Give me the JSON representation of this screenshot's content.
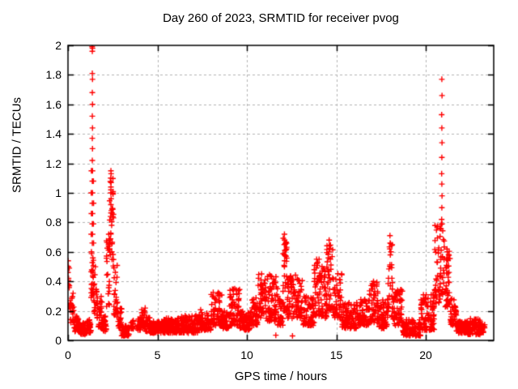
{
  "chart_data": {
    "type": "scatter",
    "title": "Day 260 of 2023, SRMTID for receiver pvog",
    "xlabel": "GPS time / hours",
    "ylabel": "SRMTID / TECUs",
    "xlim": [
      0,
      23.8
    ],
    "ylim": [
      0,
      2
    ],
    "xticks": [
      0,
      5,
      10,
      15,
      20
    ],
    "xtick_labels": [
      "0",
      "5",
      "10",
      "15",
      "20"
    ],
    "yticks": [
      0,
      0.2,
      0.4,
      0.6,
      0.8,
      1,
      1.2,
      1.4,
      1.6,
      1.8,
      2
    ],
    "ytick_labels": [
      "0",
      "0.2",
      "0.4",
      "0.6",
      "0.8",
      "1",
      "1.2",
      "1.4",
      "1.6",
      "1.8",
      "2"
    ],
    "grid": {
      "show": true,
      "color": "#b4b4b4",
      "dash": [
        3,
        3
      ]
    },
    "axis_color": "#000000",
    "background": "#ffffff",
    "legend": "none",
    "marker": {
      "shape": "plus",
      "color": "#ff0000",
      "size": 7
    },
    "random_seed": 260,
    "series": [
      {
        "name": "SRMTID",
        "band_segments": [
          [
            0.0,
            0.1,
            0.22,
            0.5,
            10
          ],
          [
            0.1,
            0.35,
            0.12,
            0.32,
            24
          ],
          [
            0.35,
            0.6,
            0.06,
            0.18,
            26
          ],
          [
            0.6,
            1.05,
            0.04,
            0.12,
            48
          ],
          [
            1.05,
            1.3,
            0.05,
            0.14,
            26
          ],
          [
            1.28,
            1.44,
            0.25,
            0.62,
            22
          ],
          [
            1.44,
            1.62,
            0.18,
            0.5,
            20
          ],
          [
            1.62,
            1.92,
            0.08,
            0.32,
            32
          ],
          [
            1.92,
            2.15,
            0.06,
            0.18,
            24
          ],
          [
            2.15,
            2.32,
            0.2,
            0.68,
            20
          ],
          [
            2.32,
            2.55,
            0.5,
            1.13,
            30
          ],
          [
            2.55,
            2.78,
            0.15,
            0.55,
            24
          ],
          [
            2.78,
            3.0,
            0.08,
            0.22,
            24
          ],
          [
            3.0,
            3.42,
            0.03,
            0.1,
            44
          ],
          [
            3.48,
            3.66,
            0.07,
            0.14,
            16
          ],
          [
            3.82,
            4.05,
            0.07,
            0.16,
            24
          ],
          [
            4.05,
            4.32,
            0.08,
            0.22,
            28
          ],
          [
            4.32,
            4.6,
            0.06,
            0.16,
            28
          ],
          [
            4.6,
            5.35,
            0.05,
            0.13,
            78
          ],
          [
            5.35,
            6.35,
            0.05,
            0.15,
            104
          ],
          [
            6.35,
            7.3,
            0.05,
            0.17,
            100
          ],
          [
            7.3,
            8.0,
            0.07,
            0.21,
            74
          ],
          [
            8.0,
            8.62,
            0.1,
            0.33,
            64
          ],
          [
            8.62,
            9.02,
            0.08,
            0.2,
            42
          ],
          [
            9.02,
            9.62,
            0.1,
            0.36,
            62
          ],
          [
            9.62,
            10.25,
            0.07,
            0.2,
            66
          ],
          [
            10.25,
            10.62,
            0.1,
            0.3,
            38
          ],
          [
            10.62,
            11.05,
            0.15,
            0.47,
            44
          ],
          [
            11.05,
            11.72,
            0.13,
            0.45,
            70
          ],
          [
            11.72,
            12.02,
            0.1,
            0.3,
            30
          ],
          [
            12.02,
            12.25,
            0.2,
            0.7,
            30
          ],
          [
            12.25,
            12.72,
            0.15,
            0.46,
            48
          ],
          [
            12.72,
            13.12,
            0.15,
            0.42,
            42
          ],
          [
            13.12,
            13.76,
            0.1,
            0.3,
            66
          ],
          [
            13.76,
            14.06,
            0.15,
            0.55,
            34
          ],
          [
            14.06,
            14.46,
            0.15,
            0.5,
            42
          ],
          [
            14.46,
            14.82,
            0.2,
            0.66,
            40
          ],
          [
            14.82,
            15.32,
            0.15,
            0.46,
            52
          ],
          [
            15.32,
            16.22,
            0.08,
            0.26,
            94
          ],
          [
            16.22,
            16.82,
            0.1,
            0.28,
            62
          ],
          [
            16.82,
            17.32,
            0.12,
            0.4,
            52
          ],
          [
            17.32,
            17.86,
            0.08,
            0.28,
            56
          ],
          [
            17.86,
            18.16,
            0.15,
            0.68,
            34
          ],
          [
            18.16,
            18.72,
            0.1,
            0.35,
            58
          ],
          [
            18.72,
            19.72,
            0.03,
            0.14,
            104
          ],
          [
            19.72,
            20.48,
            0.07,
            0.32,
            78
          ],
          [
            20.48,
            20.82,
            0.25,
            0.78,
            40
          ],
          [
            20.82,
            21.06,
            0.3,
            0.8,
            26
          ],
          [
            21.06,
            21.36,
            0.22,
            0.62,
            36
          ],
          [
            21.36,
            21.72,
            0.1,
            0.3,
            38
          ],
          [
            21.72,
            22.35,
            0.05,
            0.13,
            66
          ],
          [
            22.35,
            23.05,
            0.04,
            0.15,
            72
          ],
          [
            23.05,
            23.3,
            0.05,
            0.12,
            26
          ]
        ],
        "spike_points": [
          [
            0.01,
            0.54
          ],
          [
            0.02,
            0.5
          ],
          [
            0.0,
            0.46
          ],
          [
            0.03,
            0.42
          ],
          [
            0.01,
            0.38
          ],
          [
            1.35,
            1.99
          ],
          [
            1.37,
            1.98
          ],
          [
            1.36,
            1.96
          ],
          [
            1.36,
            1.81
          ],
          [
            1.37,
            1.77
          ],
          [
            1.36,
            1.68
          ],
          [
            1.37,
            1.6
          ],
          [
            1.36,
            1.52
          ],
          [
            1.37,
            1.44
          ],
          [
            1.36,
            1.37
          ],
          [
            1.37,
            1.3
          ],
          [
            1.36,
            1.22
          ],
          [
            1.37,
            1.15
          ],
          [
            1.36,
            1.08
          ],
          [
            1.37,
            1.0
          ],
          [
            1.36,
            0.93
          ],
          [
            1.37,
            0.86
          ],
          [
            1.36,
            0.79
          ],
          [
            1.37,
            0.72
          ],
          [
            1.36,
            0.66
          ],
          [
            1.31,
            1.15
          ],
          [
            1.3,
            1.0
          ],
          [
            1.31,
            0.86
          ],
          [
            1.3,
            0.72
          ],
          [
            1.31,
            0.6
          ],
          [
            1.42,
            1.08
          ],
          [
            1.43,
            0.93
          ],
          [
            1.42,
            0.79
          ],
          [
            1.43,
            0.66
          ],
          [
            2.4,
            1.15
          ],
          [
            2.41,
            1.13
          ],
          [
            2.39,
            1.1
          ],
          [
            2.41,
            1.07
          ],
          [
            2.4,
            1.04
          ],
          [
            2.39,
            1.0
          ],
          [
            2.41,
            0.96
          ],
          [
            2.4,
            0.92
          ],
          [
            2.42,
            0.88
          ],
          [
            2.38,
            0.84
          ],
          [
            2.44,
            0.78
          ],
          [
            2.28,
            0.72
          ],
          [
            2.27,
            0.65
          ],
          [
            2.45,
            0.6
          ],
          [
            2.46,
            0.55
          ],
          [
            12.1,
            0.72
          ],
          [
            12.11,
            0.68
          ],
          [
            12.09,
            0.65
          ],
          [
            12.12,
            0.61
          ],
          [
            12.1,
            0.58
          ],
          [
            12.11,
            0.54
          ],
          [
            12.1,
            0.5
          ],
          [
            13.9,
            0.55
          ],
          [
            13.91,
            0.52
          ],
          [
            13.89,
            0.49
          ],
          [
            14.2,
            0.5
          ],
          [
            14.21,
            0.47
          ],
          [
            14.6,
            0.68
          ],
          [
            14.61,
            0.64
          ],
          [
            14.59,
            0.6
          ],
          [
            17.08,
            0.4
          ],
          [
            17.1,
            0.38
          ],
          [
            18.0,
            0.71
          ],
          [
            18.01,
            0.66
          ],
          [
            17.99,
            0.62
          ],
          [
            18.02,
            0.58
          ],
          [
            20.9,
            1.77
          ],
          [
            20.91,
            1.66
          ],
          [
            20.89,
            1.53
          ],
          [
            20.9,
            1.44
          ],
          [
            20.91,
            1.34
          ],
          [
            20.9,
            1.24
          ],
          [
            20.89,
            1.13
          ],
          [
            20.9,
            1.06
          ],
          [
            20.91,
            0.98
          ],
          [
            20.9,
            0.9
          ],
          [
            20.89,
            0.82
          ],
          [
            21.2,
            0.6
          ],
          [
            21.21,
            0.55
          ],
          [
            21.19,
            0.5
          ],
          [
            11.62,
            0.035
          ],
          [
            12.55,
            0.03
          ]
        ]
      }
    ]
  }
}
